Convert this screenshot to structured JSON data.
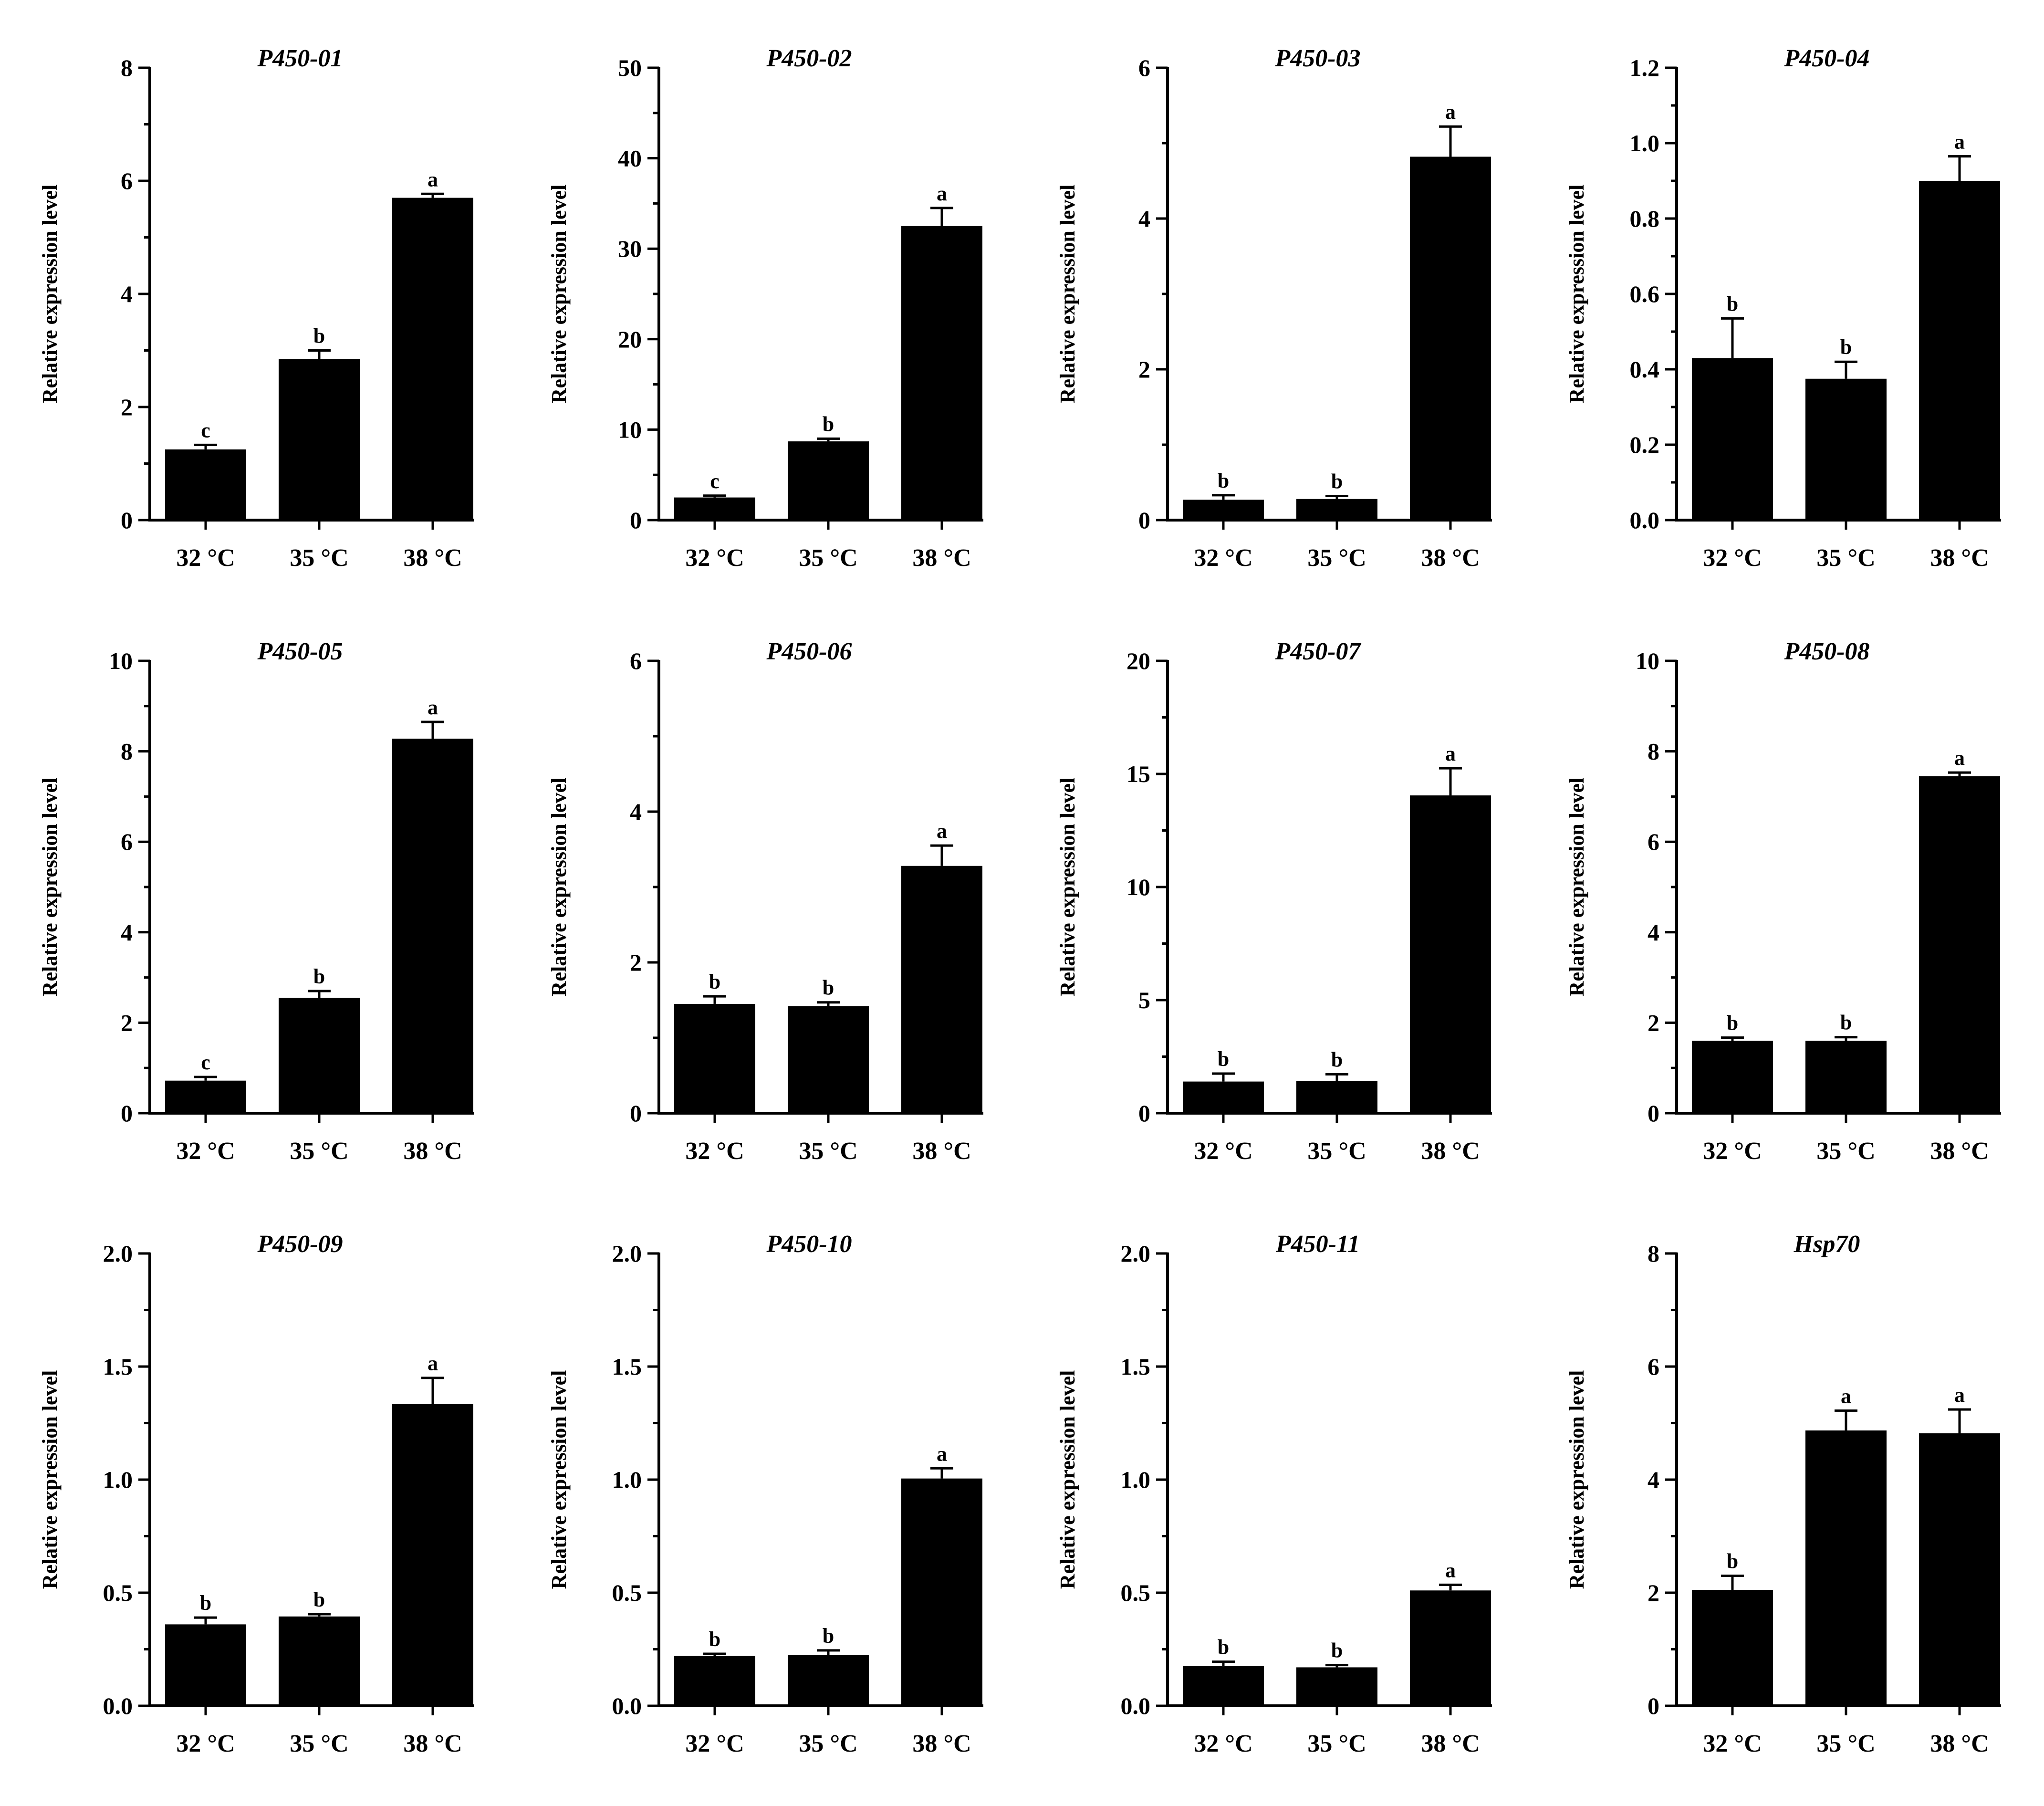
{
  "colors": {
    "bar": "#000000",
    "background": "#ffffff"
  },
  "chart_data": [
    {
      "type": "bar",
      "title": "P450-01",
      "ylabel": "Relative expression level",
      "xlabel": "",
      "categories": [
        "32 °C",
        "35 °C",
        "38 °C"
      ],
      "ylim": [
        0,
        8
      ],
      "yticks": [
        0,
        2,
        4,
        6,
        8
      ],
      "ytick_labels": [
        "0",
        "2",
        "4",
        "6",
        "8"
      ],
      "minor_step": 1,
      "values": [
        1.25,
        2.85,
        5.7
      ],
      "errors": [
        0.08,
        0.15,
        0.07
      ],
      "significance": [
        "c",
        "b",
        "a"
      ]
    },
    {
      "type": "bar",
      "title": "P450-02",
      "ylabel": "Relative expression level",
      "xlabel": "",
      "categories": [
        "32 °C",
        "35 °C",
        "38 °C"
      ],
      "ylim": [
        0,
        50
      ],
      "yticks": [
        0,
        10,
        20,
        30,
        40,
        50
      ],
      "ytick_labels": [
        "0",
        "10",
        "20",
        "30",
        "40",
        "50"
      ],
      "minor_step": 5,
      "values": [
        2.5,
        8.7,
        32.5
      ],
      "errors": [
        0.2,
        0.3,
        2.0
      ],
      "significance": [
        "c",
        "b",
        "a"
      ]
    },
    {
      "type": "bar",
      "title": "P450-03",
      "ylabel": "Relative expression level",
      "xlabel": "",
      "categories": [
        "32 °C",
        "35 °C",
        "38 °C"
      ],
      "ylim": [
        0,
        6
      ],
      "yticks": [
        0,
        2,
        4,
        6
      ],
      "ytick_labels": [
        "0",
        "2",
        "4",
        "6"
      ],
      "minor_step": 1,
      "values": [
        0.27,
        0.28,
        4.82
      ],
      "errors": [
        0.06,
        0.04,
        0.4
      ],
      "significance": [
        "b",
        "b",
        "a"
      ]
    },
    {
      "type": "bar",
      "title": "P450-04",
      "ylabel": "Relative expression level",
      "xlabel": "",
      "categories": [
        "32 °C",
        "35 °C",
        "38 °C"
      ],
      "ylim": [
        0,
        1.2
      ],
      "yticks": [
        0,
        0.2,
        0.4,
        0.6,
        0.8,
        1.0,
        1.2
      ],
      "ytick_labels": [
        "0.0",
        "0.2",
        "0.4",
        "0.6",
        "0.8",
        "1.0",
        "1.2"
      ],
      "minor_step": 0.1,
      "values": [
        0.43,
        0.375,
        0.9
      ],
      "errors": [
        0.105,
        0.045,
        0.065
      ],
      "significance": [
        "b",
        "b",
        "a"
      ]
    },
    {
      "type": "bar",
      "title": "P450-05",
      "ylabel": "Relative expression level",
      "xlabel": "",
      "categories": [
        "32 °C",
        "35 °C",
        "38 °C"
      ],
      "ylim": [
        0,
        10
      ],
      "yticks": [
        0,
        2,
        4,
        6,
        8,
        10
      ],
      "ytick_labels": [
        "0",
        "2",
        "4",
        "6",
        "8",
        "10"
      ],
      "minor_step": 1,
      "values": [
        0.72,
        2.55,
        8.28
      ],
      "errors": [
        0.08,
        0.15,
        0.37
      ],
      "significance": [
        "c",
        "b",
        "a"
      ]
    },
    {
      "type": "bar",
      "title": "P450-06",
      "ylabel": "Relative expression level",
      "xlabel": "",
      "categories": [
        "32 °C",
        "35 °C",
        "38 °C"
      ],
      "ylim": [
        0,
        6
      ],
      "yticks": [
        0,
        2,
        4,
        6
      ],
      "ytick_labels": [
        "0",
        "2",
        "4",
        "6"
      ],
      "minor_step": 1,
      "values": [
        1.45,
        1.42,
        3.28
      ],
      "errors": [
        0.1,
        0.05,
        0.27
      ],
      "significance": [
        "b",
        "b",
        "a"
      ]
    },
    {
      "type": "bar",
      "title": "P450-07",
      "ylabel": "Relative expression level",
      "xlabel": "",
      "categories": [
        "32 °C",
        "35 °C",
        "38 °C"
      ],
      "ylim": [
        0,
        20
      ],
      "yticks": [
        0,
        5,
        10,
        15,
        20
      ],
      "ytick_labels": [
        "0",
        "5",
        "10",
        "15",
        "20"
      ],
      "minor_step": 2.5,
      "values": [
        1.4,
        1.42,
        14.05
      ],
      "errors": [
        0.35,
        0.3,
        1.2
      ],
      "significance": [
        "b",
        "b",
        "a"
      ]
    },
    {
      "type": "bar",
      "title": "P450-08",
      "ylabel": "Relative expression level",
      "xlabel": "",
      "categories": [
        "32 °C",
        "35 °C",
        "38 °C"
      ],
      "ylim": [
        0,
        10
      ],
      "yticks": [
        0,
        2,
        4,
        6,
        8,
        10
      ],
      "ytick_labels": [
        "0",
        "2",
        "4",
        "6",
        "8",
        "10"
      ],
      "minor_step": 1,
      "values": [
        1.6,
        1.6,
        7.45
      ],
      "errors": [
        0.07,
        0.08,
        0.08
      ],
      "significance": [
        "b",
        "b",
        "a"
      ]
    },
    {
      "type": "bar",
      "title": "P450-09",
      "ylabel": "Relative expression level",
      "xlabel": "",
      "categories": [
        "32 °C",
        "35 °C",
        "38 °C"
      ],
      "ylim": [
        0,
        2
      ],
      "yticks": [
        0,
        0.5,
        1.0,
        1.5,
        2.0
      ],
      "ytick_labels": [
        "0.0",
        "0.5",
        "1.0",
        "1.5",
        "2.0"
      ],
      "minor_step": 0.25,
      "values": [
        0.36,
        0.395,
        1.335
      ],
      "errors": [
        0.03,
        0.01,
        0.115
      ],
      "significance": [
        "b",
        "b",
        "a"
      ]
    },
    {
      "type": "bar",
      "title": "P450-10",
      "ylabel": "Relative expression level",
      "xlabel": "",
      "categories": [
        "32 °C",
        "35 °C",
        "38 °C"
      ],
      "ylim": [
        0,
        2
      ],
      "yticks": [
        0,
        0.5,
        1.0,
        1.5,
        2.0
      ],
      "ytick_labels": [
        "0.0",
        "0.5",
        "1.0",
        "1.5",
        "2.0"
      ],
      "minor_step": 0.25,
      "values": [
        0.22,
        0.225,
        1.005
      ],
      "errors": [
        0.01,
        0.02,
        0.045
      ],
      "significance": [
        "b",
        "b",
        "a"
      ]
    },
    {
      "type": "bar",
      "title": "P450-11",
      "ylabel": "Relative expression level",
      "xlabel": "",
      "categories": [
        "32 °C",
        "35 °C",
        "38 °C"
      ],
      "ylim": [
        0,
        2
      ],
      "yticks": [
        0,
        0.5,
        1.0,
        1.5,
        2.0
      ],
      "ytick_labels": [
        "0.0",
        "0.5",
        "1.0",
        "1.5",
        "2.0"
      ],
      "minor_step": 0.25,
      "values": [
        0.175,
        0.17,
        0.51
      ],
      "errors": [
        0.02,
        0.01,
        0.025
      ],
      "significance": [
        "b",
        "b",
        "a"
      ]
    },
    {
      "type": "bar",
      "title": "Hsp70",
      "ylabel": "Relative expression level",
      "xlabel": "",
      "categories": [
        "32 °C",
        "35 °C",
        "38 °C"
      ],
      "ylim": [
        0,
        8
      ],
      "yticks": [
        0,
        2,
        4,
        6,
        8
      ],
      "ytick_labels": [
        "0",
        "2",
        "4",
        "6",
        "8"
      ],
      "minor_step": 1,
      "values": [
        2.05,
        4.87,
        4.82
      ],
      "errors": [
        0.25,
        0.35,
        0.42
      ],
      "significance": [
        "b",
        "a",
        "a"
      ]
    }
  ]
}
